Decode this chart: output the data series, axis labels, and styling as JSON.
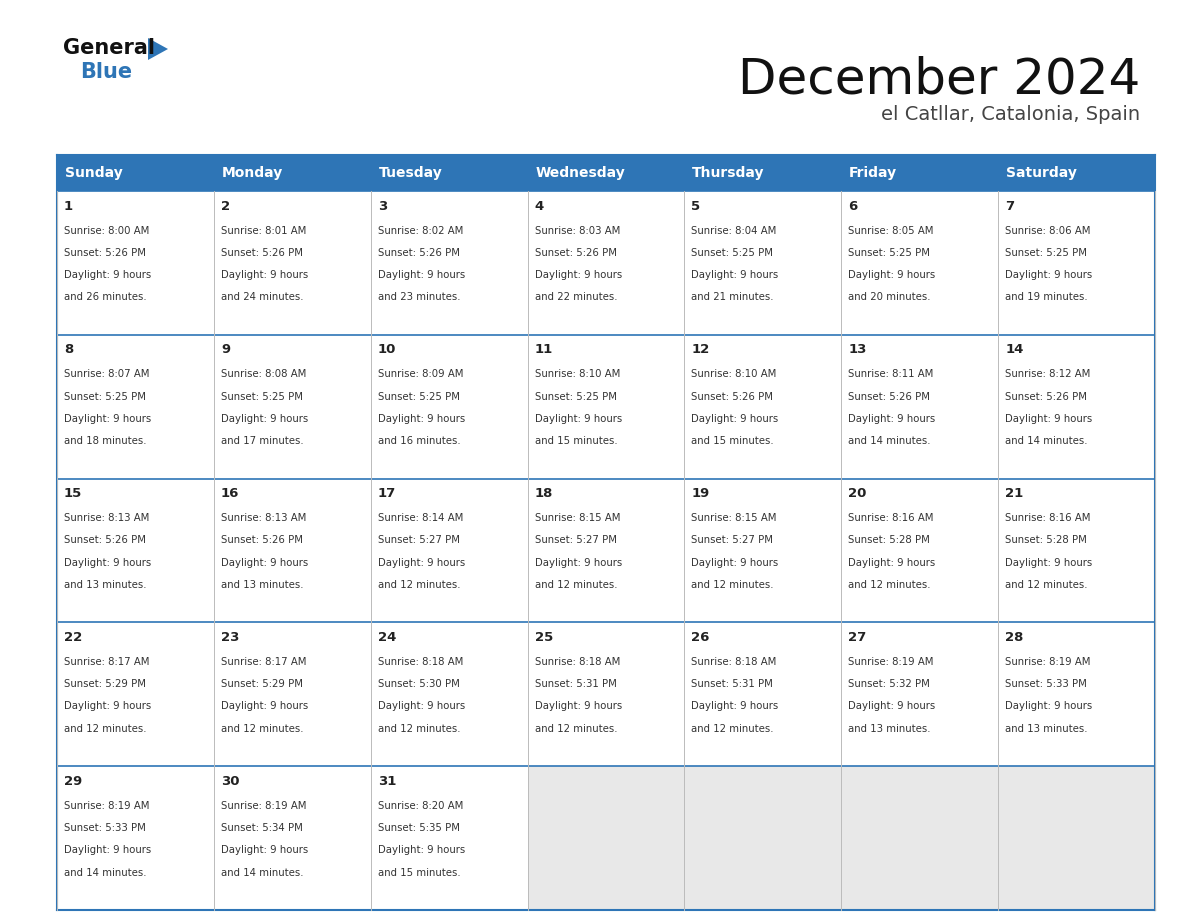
{
  "title": "December 2024",
  "subtitle": "el Catllar, Catalonia, Spain",
  "header_bg": "#2E75B6",
  "header_text": "#FFFFFF",
  "cell_border_color": "#2E75B6",
  "cell_text_color": "#333333",
  "day_num_color": "#222222",
  "empty_cell_bg": "#E8E8E8",
  "filled_cell_bg": "#FFFFFF",
  "day_headers": [
    "Sunday",
    "Monday",
    "Tuesday",
    "Wednesday",
    "Thursday",
    "Friday",
    "Saturday"
  ],
  "calendar": [
    [
      {
        "day": 1,
        "sunrise": "8:00 AM",
        "sunset": "5:26 PM",
        "daylight_line1": "9 hours",
        "daylight_line2": "and 26 minutes."
      },
      {
        "day": 2,
        "sunrise": "8:01 AM",
        "sunset": "5:26 PM",
        "daylight_line1": "9 hours",
        "daylight_line2": "and 24 minutes."
      },
      {
        "day": 3,
        "sunrise": "8:02 AM",
        "sunset": "5:26 PM",
        "daylight_line1": "9 hours",
        "daylight_line2": "and 23 minutes."
      },
      {
        "day": 4,
        "sunrise": "8:03 AM",
        "sunset": "5:26 PM",
        "daylight_line1": "9 hours",
        "daylight_line2": "and 22 minutes."
      },
      {
        "day": 5,
        "sunrise": "8:04 AM",
        "sunset": "5:25 PM",
        "daylight_line1": "9 hours",
        "daylight_line2": "and 21 minutes."
      },
      {
        "day": 6,
        "sunrise": "8:05 AM",
        "sunset": "5:25 PM",
        "daylight_line1": "9 hours",
        "daylight_line2": "and 20 minutes."
      },
      {
        "day": 7,
        "sunrise": "8:06 AM",
        "sunset": "5:25 PM",
        "daylight_line1": "9 hours",
        "daylight_line2": "and 19 minutes."
      }
    ],
    [
      {
        "day": 8,
        "sunrise": "8:07 AM",
        "sunset": "5:25 PM",
        "daylight_line1": "9 hours",
        "daylight_line2": "and 18 minutes."
      },
      {
        "day": 9,
        "sunrise": "8:08 AM",
        "sunset": "5:25 PM",
        "daylight_line1": "9 hours",
        "daylight_line2": "and 17 minutes."
      },
      {
        "day": 10,
        "sunrise": "8:09 AM",
        "sunset": "5:25 PM",
        "daylight_line1": "9 hours",
        "daylight_line2": "and 16 minutes."
      },
      {
        "day": 11,
        "sunrise": "8:10 AM",
        "sunset": "5:25 PM",
        "daylight_line1": "9 hours",
        "daylight_line2": "and 15 minutes."
      },
      {
        "day": 12,
        "sunrise": "8:10 AM",
        "sunset": "5:26 PM",
        "daylight_line1": "9 hours",
        "daylight_line2": "and 15 minutes."
      },
      {
        "day": 13,
        "sunrise": "8:11 AM",
        "sunset": "5:26 PM",
        "daylight_line1": "9 hours",
        "daylight_line2": "and 14 minutes."
      },
      {
        "day": 14,
        "sunrise": "8:12 AM",
        "sunset": "5:26 PM",
        "daylight_line1": "9 hours",
        "daylight_line2": "and 14 minutes."
      }
    ],
    [
      {
        "day": 15,
        "sunrise": "8:13 AM",
        "sunset": "5:26 PM",
        "daylight_line1": "9 hours",
        "daylight_line2": "and 13 minutes."
      },
      {
        "day": 16,
        "sunrise": "8:13 AM",
        "sunset": "5:26 PM",
        "daylight_line1": "9 hours",
        "daylight_line2": "and 13 minutes."
      },
      {
        "day": 17,
        "sunrise": "8:14 AM",
        "sunset": "5:27 PM",
        "daylight_line1": "9 hours",
        "daylight_line2": "and 12 minutes."
      },
      {
        "day": 18,
        "sunrise": "8:15 AM",
        "sunset": "5:27 PM",
        "daylight_line1": "9 hours",
        "daylight_line2": "and 12 minutes."
      },
      {
        "day": 19,
        "sunrise": "8:15 AM",
        "sunset": "5:27 PM",
        "daylight_line1": "9 hours",
        "daylight_line2": "and 12 minutes."
      },
      {
        "day": 20,
        "sunrise": "8:16 AM",
        "sunset": "5:28 PM",
        "daylight_line1": "9 hours",
        "daylight_line2": "and 12 minutes."
      },
      {
        "day": 21,
        "sunrise": "8:16 AM",
        "sunset": "5:28 PM",
        "daylight_line1": "9 hours",
        "daylight_line2": "and 12 minutes."
      }
    ],
    [
      {
        "day": 22,
        "sunrise": "8:17 AM",
        "sunset": "5:29 PM",
        "daylight_line1": "9 hours",
        "daylight_line2": "and 12 minutes."
      },
      {
        "day": 23,
        "sunrise": "8:17 AM",
        "sunset": "5:29 PM",
        "daylight_line1": "9 hours",
        "daylight_line2": "and 12 minutes."
      },
      {
        "day": 24,
        "sunrise": "8:18 AM",
        "sunset": "5:30 PM",
        "daylight_line1": "9 hours",
        "daylight_line2": "and 12 minutes."
      },
      {
        "day": 25,
        "sunrise": "8:18 AM",
        "sunset": "5:31 PM",
        "daylight_line1": "9 hours",
        "daylight_line2": "and 12 minutes."
      },
      {
        "day": 26,
        "sunrise": "8:18 AM",
        "sunset": "5:31 PM",
        "daylight_line1": "9 hours",
        "daylight_line2": "and 12 minutes."
      },
      {
        "day": 27,
        "sunrise": "8:19 AM",
        "sunset": "5:32 PM",
        "daylight_line1": "9 hours",
        "daylight_line2": "and 13 minutes."
      },
      {
        "day": 28,
        "sunrise": "8:19 AM",
        "sunset": "5:33 PM",
        "daylight_line1": "9 hours",
        "daylight_line2": "and 13 minutes."
      }
    ],
    [
      {
        "day": 29,
        "sunrise": "8:19 AM",
        "sunset": "5:33 PM",
        "daylight_line1": "9 hours",
        "daylight_line2": "and 14 minutes."
      },
      {
        "day": 30,
        "sunrise": "8:19 AM",
        "sunset": "5:34 PM",
        "daylight_line1": "9 hours",
        "daylight_line2": "and 14 minutes."
      },
      {
        "day": 31,
        "sunrise": "8:20 AM",
        "sunset": "5:35 PM",
        "daylight_line1": "9 hours",
        "daylight_line2": "and 15 minutes."
      },
      null,
      null,
      null,
      null
    ]
  ],
  "logo_general_color": "#111111",
  "logo_blue_color": "#2E75B6",
  "logo_triangle_color": "#2E75B6"
}
